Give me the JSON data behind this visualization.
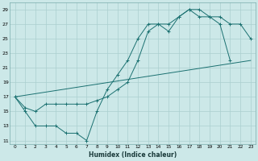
{
  "xlabel": "Humidex (Indice chaleur)",
  "background_color": "#cce8e8",
  "grid_color": "#aacfcf",
  "line_color": "#1a7070",
  "xlim": [
    -0.5,
    23.5
  ],
  "ylim": [
    10.5,
    30.0
  ],
  "xticks": [
    0,
    1,
    2,
    3,
    4,
    5,
    6,
    7,
    8,
    9,
    10,
    11,
    12,
    13,
    14,
    15,
    16,
    17,
    18,
    19,
    20,
    21,
    22,
    23
  ],
  "yticks": [
    11,
    13,
    15,
    17,
    19,
    21,
    23,
    25,
    27,
    29
  ],
  "curve1_x": [
    0,
    1,
    2,
    3,
    4,
    5,
    6,
    7,
    8,
    9,
    10,
    11,
    12,
    13,
    14,
    15,
    16,
    17,
    18,
    19,
    20,
    21
  ],
  "curve1_y": [
    17,
    15,
    13,
    13,
    13,
    12,
    12,
    11,
    15,
    18,
    20,
    22,
    25,
    27,
    27,
    26,
    28,
    29,
    29,
    28,
    27,
    22
  ],
  "curve2_x": [
    0,
    1,
    2,
    3,
    4,
    5,
    6,
    7,
    8,
    9,
    10,
    11,
    12,
    13,
    14,
    15,
    16,
    17,
    18,
    19,
    20,
    21,
    22,
    23
  ],
  "curve2_y": [
    17,
    15.5,
    15,
    16,
    16,
    16,
    16,
    16,
    16.5,
    17,
    18,
    19,
    22,
    26,
    27,
    27,
    28,
    29,
    28,
    28,
    28,
    27,
    27,
    25
  ],
  "curve3_x": [
    0,
    23
  ],
  "curve3_y": [
    17,
    22
  ]
}
